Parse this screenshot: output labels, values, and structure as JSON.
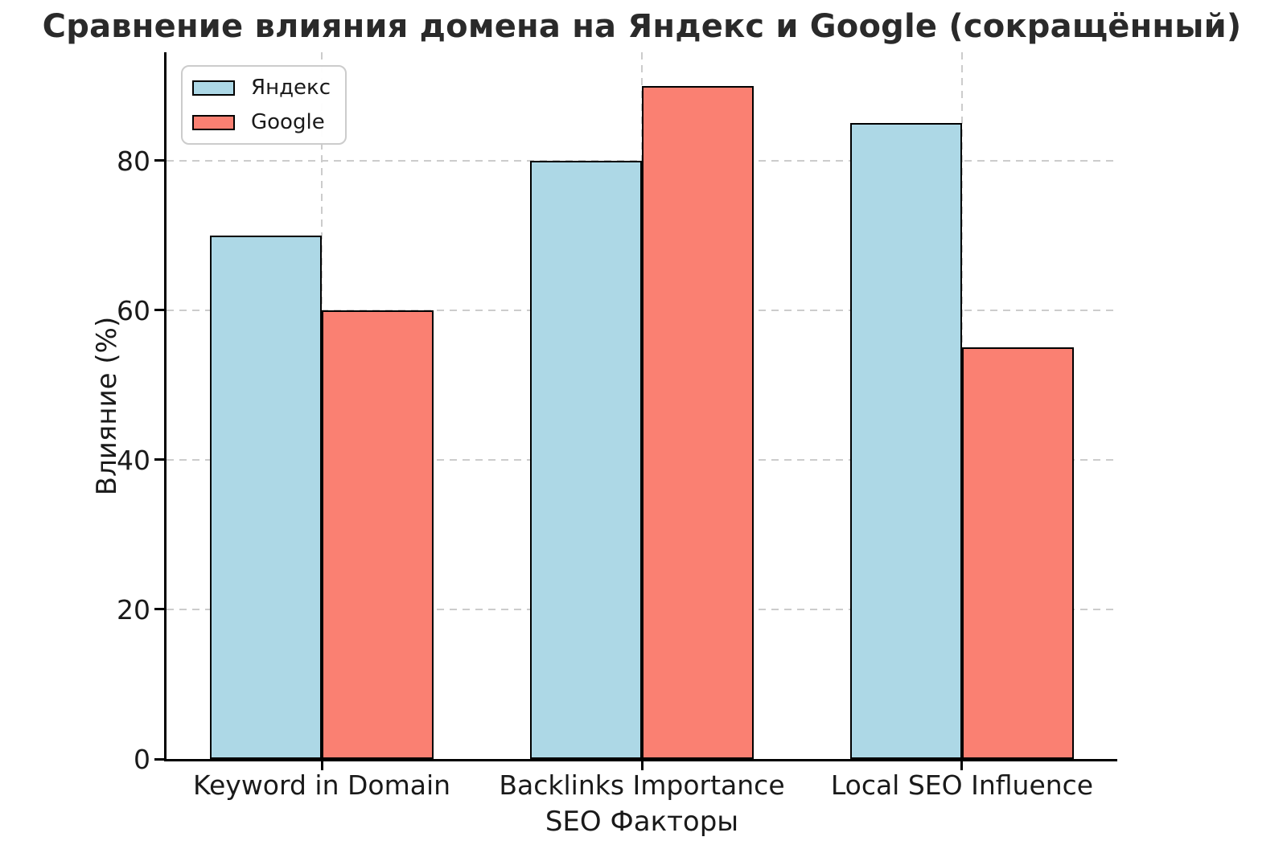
{
  "chart_data": {
    "type": "bar",
    "title": "Сравнение влияния домена на Яндекс и Google (сокращённый)",
    "xlabel": "SEO Факторы",
    "ylabel": "Влияние (%)",
    "categories": [
      "Keyword in Domain",
      "Backlinks Importance",
      "Local SEO Influence"
    ],
    "series": [
      {
        "name": "Яндекс",
        "color": "#ADD8E6",
        "values": [
          70,
          80,
          85
        ]
      },
      {
        "name": "Google",
        "color": "#FA8072",
        "values": [
          60,
          90,
          55
        ]
      }
    ],
    "yticks": [
      0,
      20,
      40,
      60,
      80
    ],
    "ylim": [
      0,
      94.5
    ],
    "xlim": [
      -0.485,
      2.485
    ],
    "bar_width": 0.35,
    "grid": "dashed",
    "grid_color": "#cccccc",
    "bar_edge_color": "#000000",
    "legend_position": "upper left",
    "legend_entries": [
      "Яндекс",
      "Google"
    ]
  }
}
